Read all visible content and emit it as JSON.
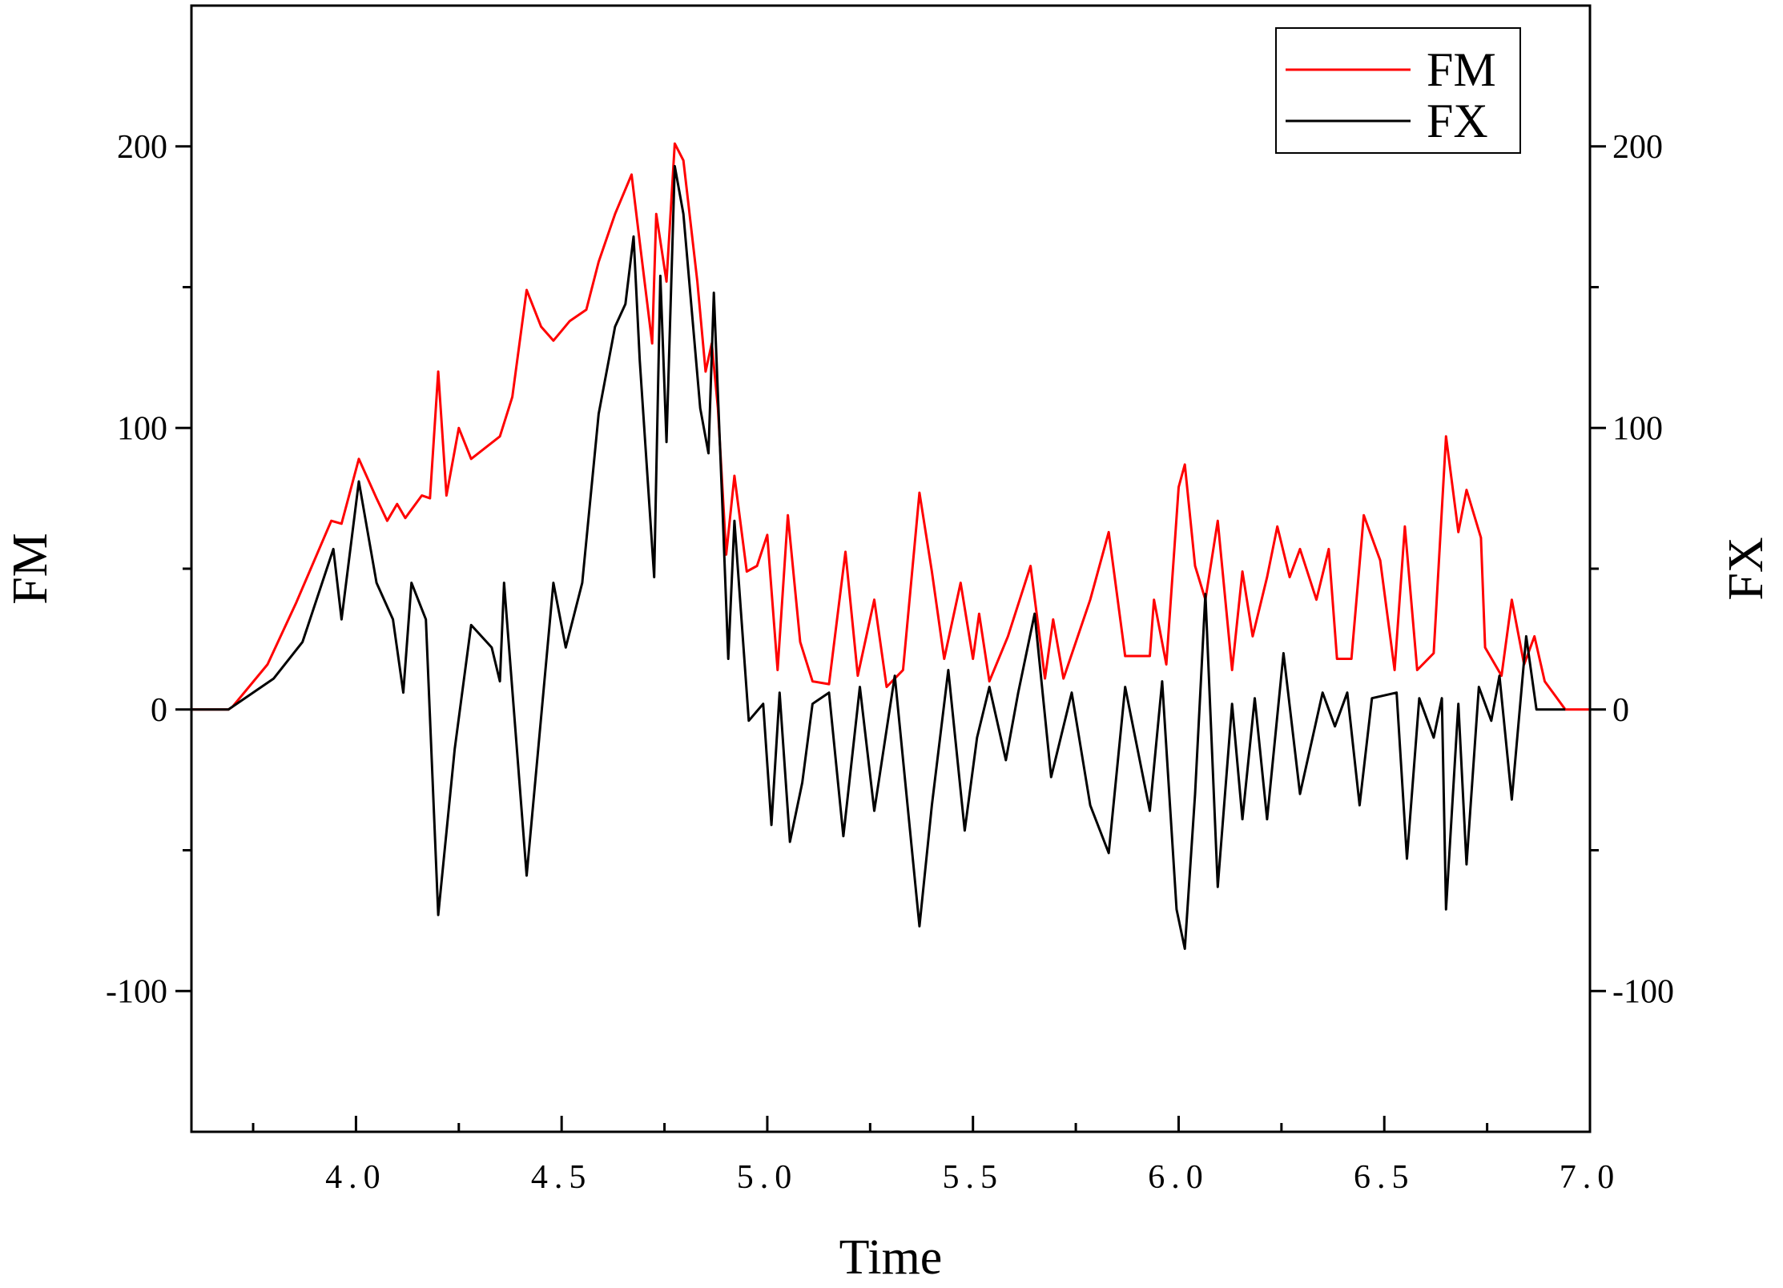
{
  "chart_data": {
    "type": "line",
    "x_label": "Time",
    "y_label": "FM",
    "y2_label": "FX",
    "xlim": [
      3.6,
      7.0
    ],
    "xticks": [
      {
        "value": 4,
        "label": "4.0"
      },
      {
        "value": 4.5,
        "label": "4.5"
      },
      {
        "value": 5,
        "label": "5.0"
      },
      {
        "value": 5.5,
        "label": "5.5"
      },
      {
        "value": 6,
        "label": "6.0"
      },
      {
        "value": 6.5,
        "label": "6.5"
      },
      {
        "value": 7,
        "label": "7.0"
      }
    ],
    "xminorticks": [
      3.75,
      4.25,
      4.75,
      5.25,
      5.75,
      6.25,
      6.75
    ],
    "ylim": [
      -150,
      250
    ],
    "yticks": [
      -100,
      0,
      100,
      200
    ],
    "yminorticks": [
      -50,
      50,
      150
    ],
    "y2lim": [
      -150,
      250
    ],
    "y2ticks": [
      -100,
      0,
      100,
      200
    ],
    "y2minorticks": [
      -50,
      50,
      150
    ],
    "legend": "upper right",
    "series": [
      {
        "name": "FM",
        "color": "#ff0000",
        "x": [
          3.6,
          3.69,
          3.7,
          3.785,
          3.855,
          3.94,
          3.965,
          4.007,
          4.05,
          4.076,
          4.1,
          4.12,
          4.16,
          4.18,
          4.2,
          4.22,
          4.25,
          4.28,
          4.35,
          4.38,
          4.415,
          4.45,
          4.48,
          4.52,
          4.56,
          4.59,
          4.63,
          4.67,
          4.69,
          4.72,
          4.73,
          4.755,
          4.775,
          4.796,
          4.83,
          4.85,
          4.865,
          4.88,
          4.9,
          4.92,
          4.95,
          4.975,
          5.0,
          5.025,
          5.05,
          5.08,
          5.11,
          5.15,
          5.19,
          5.22,
          5.26,
          5.29,
          5.33,
          5.37,
          5.4,
          5.43,
          5.47,
          5.5,
          5.515,
          5.54,
          5.585,
          5.64,
          5.675,
          5.695,
          5.72,
          5.785,
          5.83,
          5.87,
          5.93,
          5.94,
          5.97,
          6.0,
          6.015,
          6.04,
          6.065,
          6.095,
          6.13,
          6.155,
          6.18,
          6.215,
          6.24,
          6.27,
          6.295,
          6.335,
          6.365,
          6.385,
          6.42,
          6.45,
          6.49,
          6.525,
          6.55,
          6.58,
          6.62,
          6.65,
          6.68,
          6.7,
          6.735,
          6.745,
          6.785,
          6.81,
          6.84,
          6.865,
          6.89,
          6.94,
          7.0
        ],
        "values": [
          0,
          0,
          1,
          16,
          38,
          67,
          66,
          89,
          75,
          67,
          73,
          68,
          76,
          75,
          120,
          76,
          100,
          89,
          97,
          111,
          149,
          136,
          131,
          138,
          142,
          159,
          176,
          190,
          166,
          130,
          176,
          152,
          201,
          195,
          152,
          120,
          130,
          107,
          55,
          83,
          49,
          51,
          62,
          14,
          69,
          24,
          10,
          9,
          56,
          12,
          39,
          8,
          14,
          77,
          49,
          18,
          45,
          18,
          34,
          10,
          26,
          51,
          11,
          32,
          11,
          39,
          63,
          19,
          19,
          39,
          16,
          79,
          87,
          51,
          39,
          67,
          14,
          49,
          26,
          47,
          65,
          47,
          57,
          39,
          57,
          18,
          18,
          69,
          53,
          14,
          65,
          14,
          20,
          97,
          63,
          78,
          61,
          22,
          12,
          39,
          16,
          26,
          10,
          0,
          0
        ]
      },
      {
        "name": "FX",
        "color": "#000000",
        "axis": "y2",
        "x": [
          3.6,
          3.69,
          3.8,
          3.87,
          3.945,
          3.965,
          4.007,
          4.05,
          4.09,
          4.115,
          4.135,
          4.17,
          4.2,
          4.24,
          4.28,
          4.33,
          4.35,
          4.36,
          4.415,
          4.48,
          4.51,
          4.55,
          4.59,
          4.63,
          4.655,
          4.675,
          4.69,
          4.725,
          4.74,
          4.755,
          4.775,
          4.796,
          4.837,
          4.857,
          4.87,
          4.89,
          4.905,
          4.92,
          4.955,
          4.99,
          5.01,
          5.03,
          5.055,
          5.085,
          5.11,
          5.15,
          5.185,
          5.225,
          5.26,
          5.31,
          5.37,
          5.4,
          5.44,
          5.48,
          5.51,
          5.54,
          5.58,
          5.61,
          5.65,
          5.69,
          5.74,
          5.785,
          5.83,
          5.87,
          5.93,
          5.96,
          5.995,
          6.015,
          6.04,
          6.065,
          6.095,
          6.13,
          6.155,
          6.185,
          6.215,
          6.255,
          6.295,
          6.35,
          6.38,
          6.41,
          6.44,
          6.47,
          6.53,
          6.555,
          6.585,
          6.62,
          6.64,
          6.65,
          6.68,
          6.7,
          6.73,
          6.76,
          6.78,
          6.81,
          6.845,
          6.87,
          6.94
        ],
        "values": [
          0,
          0,
          11,
          24,
          57,
          32,
          81,
          45,
          32,
          6,
          45,
          32,
          -73,
          -14,
          30,
          22,
          10,
          45,
          -59,
          45,
          22,
          45,
          105,
          136,
          144,
          168,
          124,
          47,
          154,
          95,
          193,
          176,
          107,
          91,
          148,
          75,
          18,
          67,
          -4,
          2,
          -41,
          6,
          -47,
          -26,
          2,
          6,
          -45,
          8,
          -36,
          12,
          -77,
          -34,
          14,
          -43,
          -10,
          8,
          -18,
          6,
          34,
          -24,
          6,
          -34,
          -51,
          8,
          -36,
          10,
          -71,
          -85,
          -30,
          41,
          -63,
          2,
          -39,
          4,
          -39,
          20,
          -30,
          6,
          -6,
          6,
          -34,
          4,
          6,
          -53,
          4,
          -10,
          4,
          -71,
          2,
          -55,
          8,
          -4,
          12,
          -32,
          26,
          0,
          0
        ]
      }
    ]
  }
}
